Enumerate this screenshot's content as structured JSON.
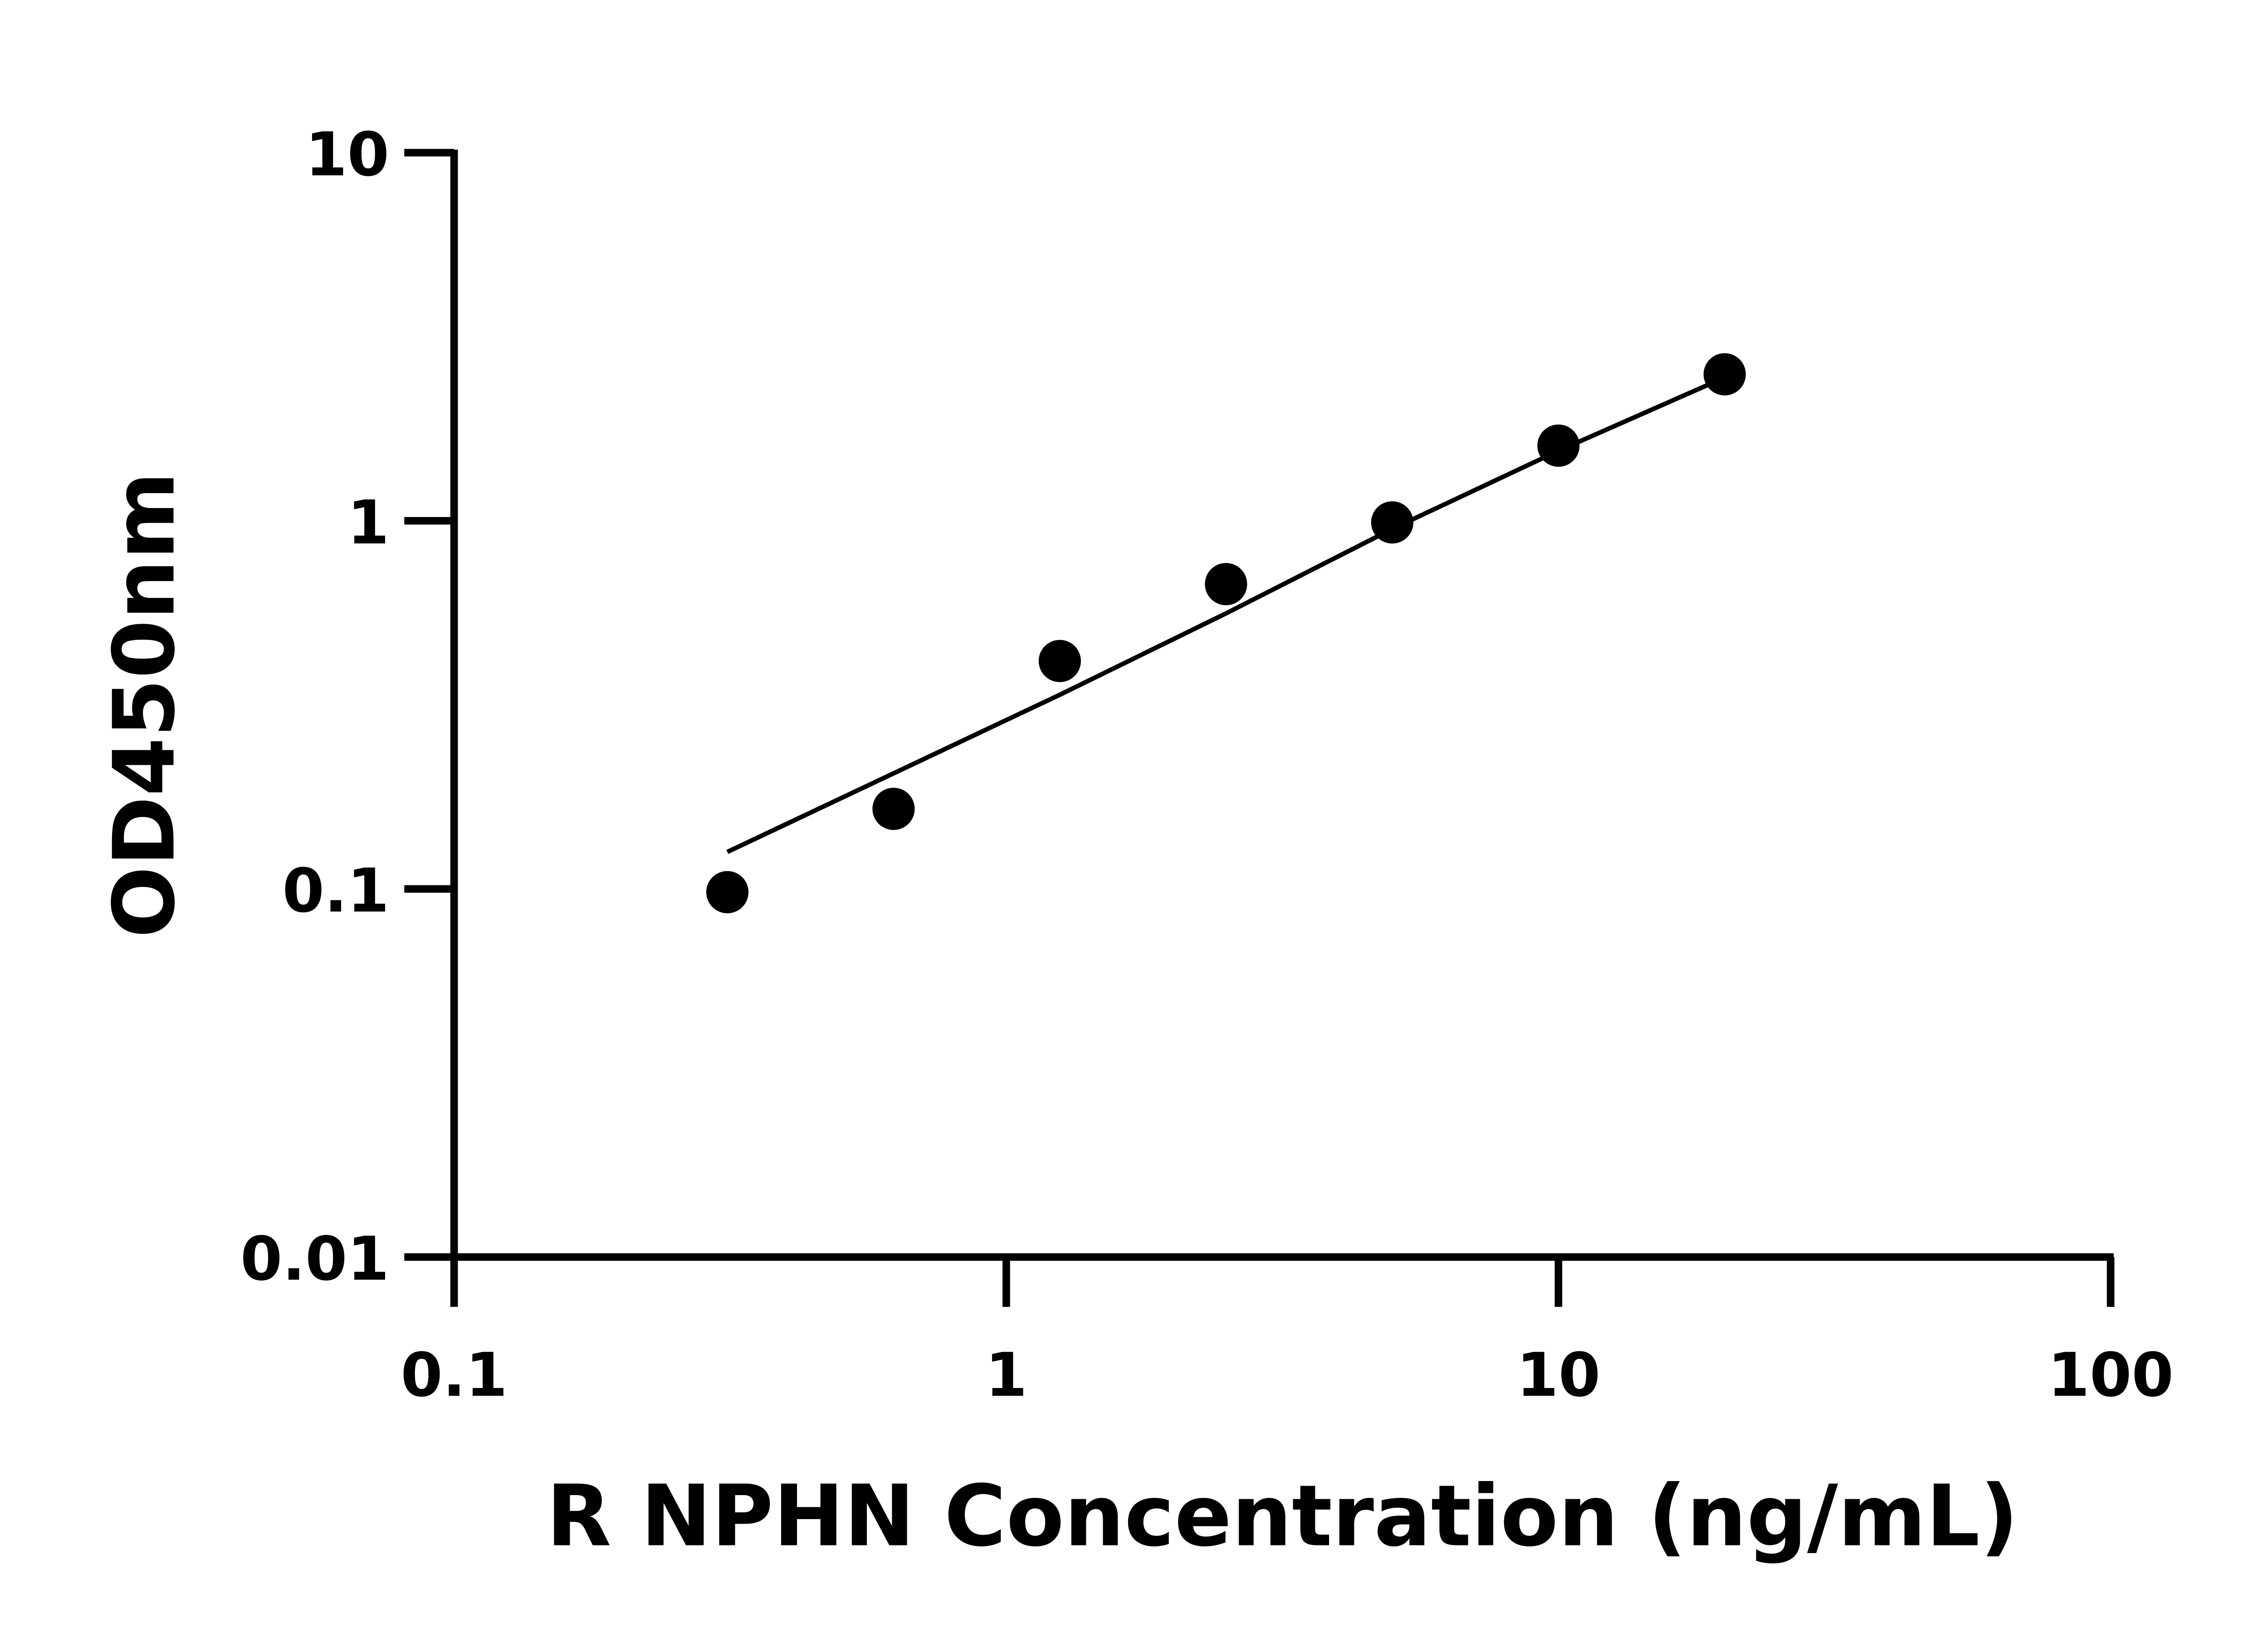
{
  "chart_data": {
    "type": "scatter",
    "title": "",
    "xlabel": "R NPHN Concentration (ng/mL)",
    "ylabel": "OD450nm",
    "x_scale": "log",
    "y_scale": "log",
    "xlim": [
      0.1,
      100
    ],
    "ylim": [
      0.01,
      10
    ],
    "x_ticks": [
      "0.1",
      "1",
      "10",
      "100"
    ],
    "y_ticks": [
      "0.01",
      "0.1",
      "1",
      "10"
    ],
    "grid": false,
    "legend": "none",
    "points": {
      "x": [
        0.3125,
        0.625,
        1.25,
        2.5,
        5,
        10,
        20
      ],
      "y": [
        0.098,
        0.165,
        0.416,
        0.673,
        0.99,
        1.6,
        2.5
      ]
    },
    "fit_curve": {
      "x": [
        0.3125,
        0.625,
        1.25,
        2.5,
        5,
        10,
        20
      ],
      "y": [
        0.126,
        0.206,
        0.337,
        0.56,
        0.95,
        1.55,
        2.45
      ]
    },
    "colors": {
      "points": "#000000",
      "line": "#000000"
    }
  }
}
